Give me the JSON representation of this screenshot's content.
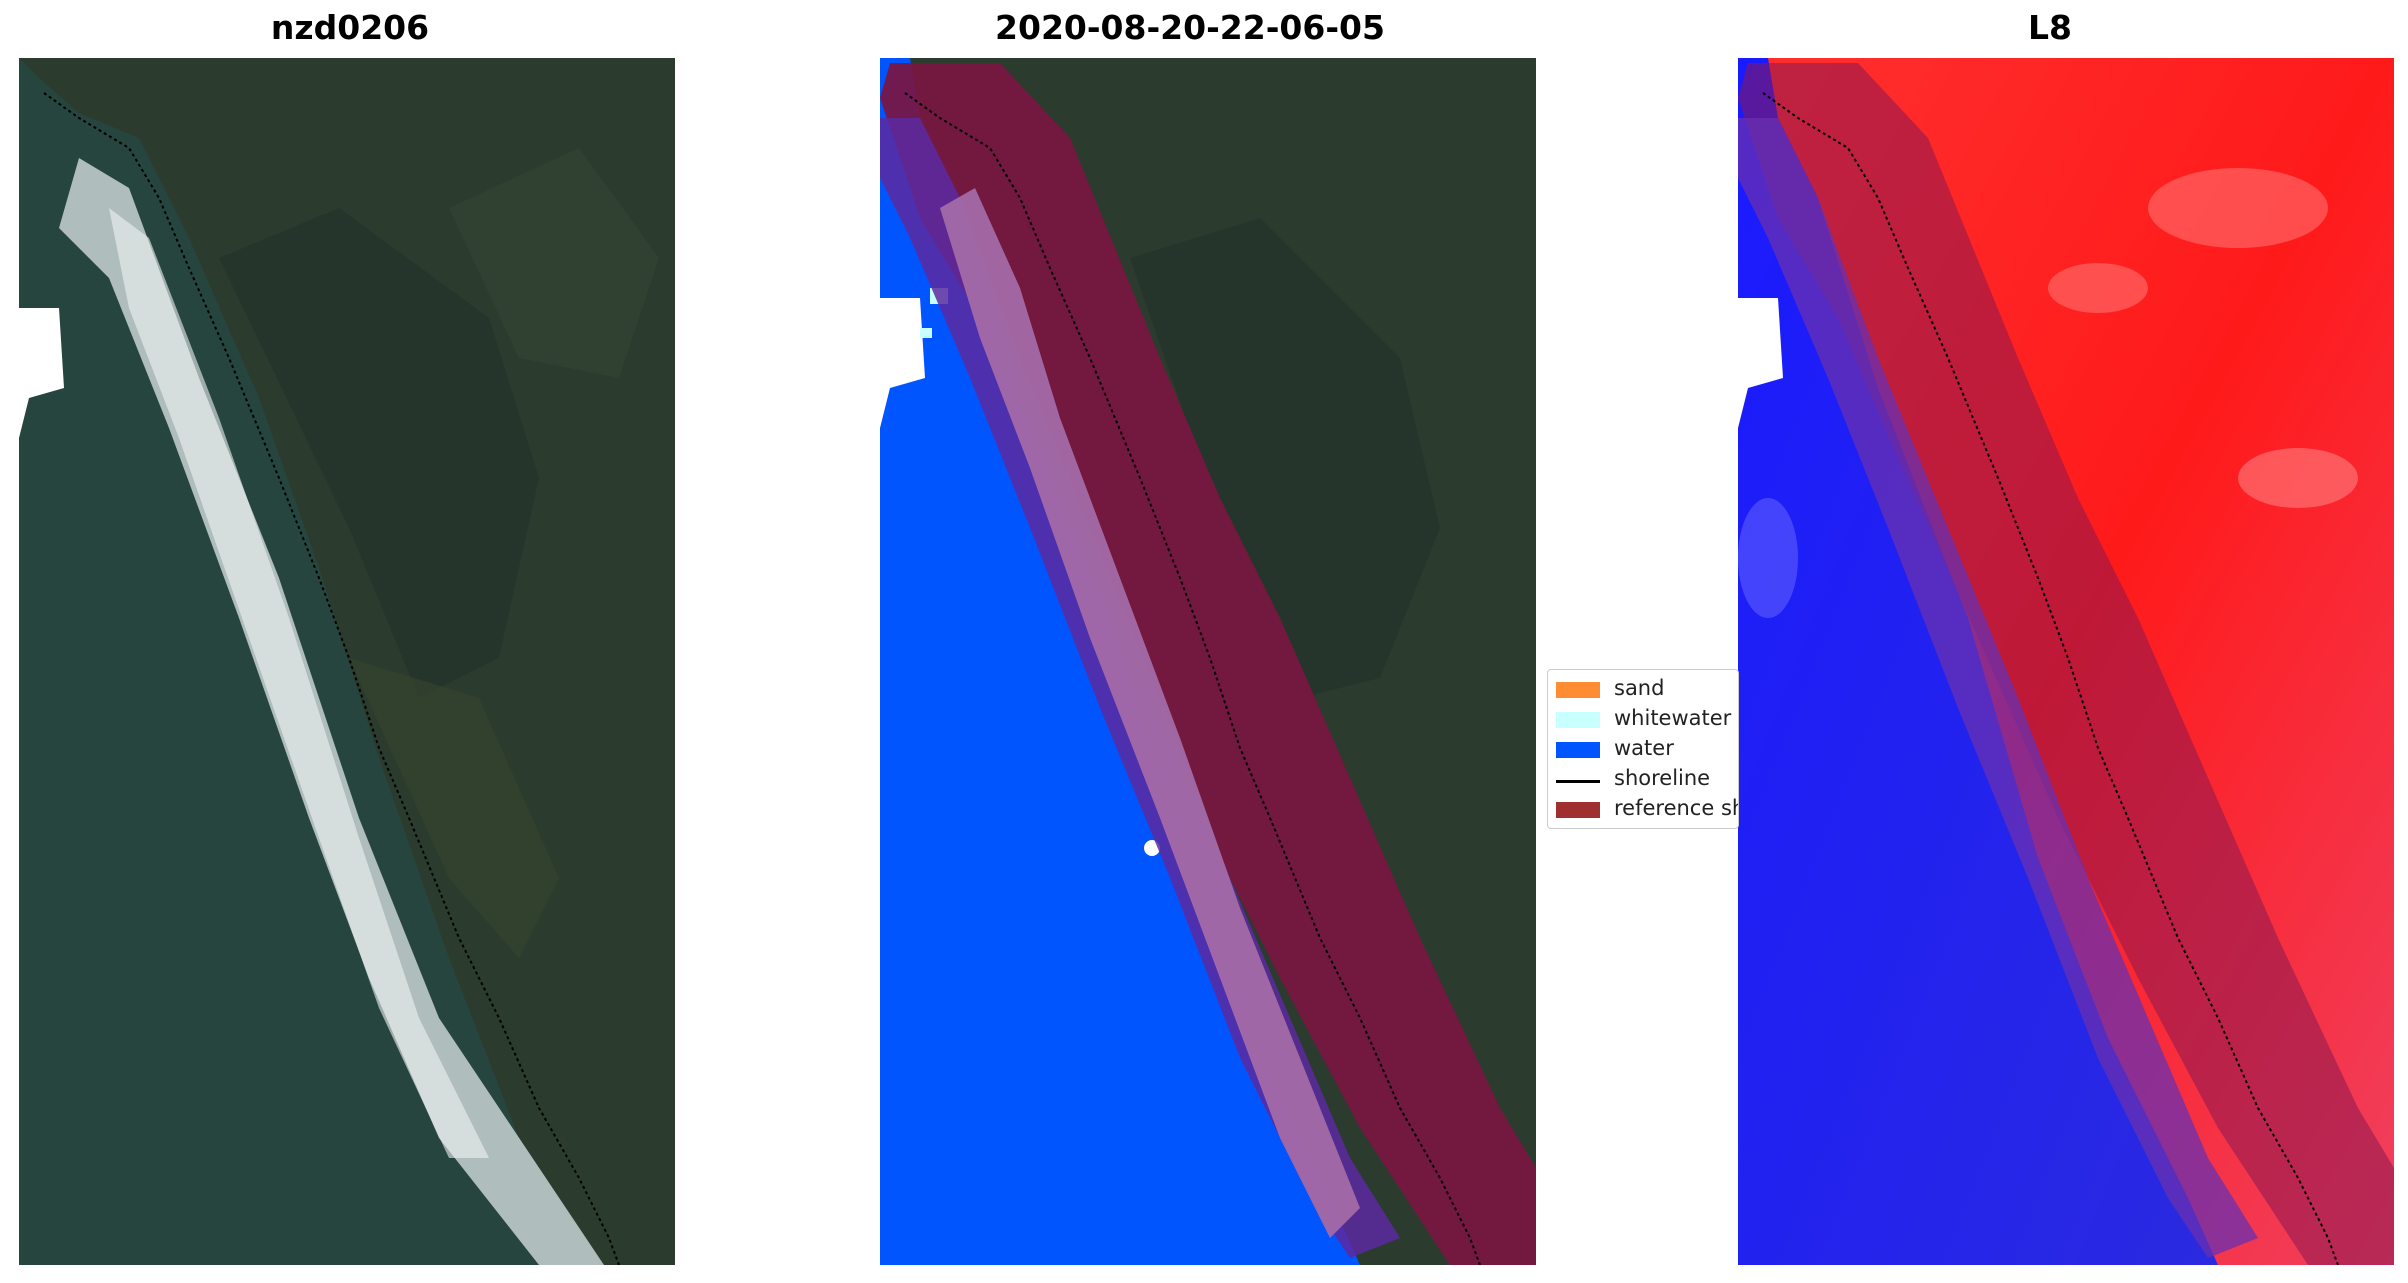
{
  "panels": [
    {
      "title": "nzd0206"
    },
    {
      "title": "2020-08-20-22-06-05"
    },
    {
      "title": "L8"
    }
  ],
  "legend": {
    "items": [
      {
        "label": "sand",
        "color": "#ff8c33",
        "kind": "patch"
      },
      {
        "label": "whitewater",
        "color": "#c8ffff",
        "kind": "patch"
      },
      {
        "label": "water",
        "color": "#0055ff",
        "kind": "patch"
      },
      {
        "label": "shoreline",
        "color": "#000000",
        "kind": "line"
      },
      {
        "label": "reference shoreline buffer",
        "color": "#a03030",
        "kind": "patch"
      }
    ]
  },
  "colors": {
    "ocean": "#26433f",
    "land": "#2a3a2c",
    "whitewater_surf": "#dde6e6",
    "water_class": "#0055ff",
    "buffer": "#7a1640",
    "sand_class_overlay": "#a36aa6",
    "index_positive": "#ff2a2a",
    "index_negative": "#1a1aee"
  }
}
